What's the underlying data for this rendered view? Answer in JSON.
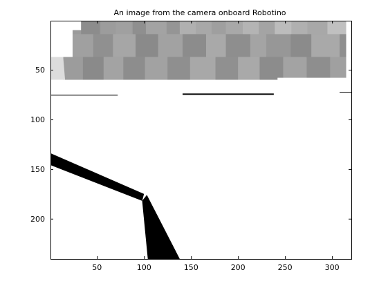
{
  "chart_data": {
    "type": "image",
    "title": "An image from the camera onboard Robotino",
    "xlabel": "",
    "ylabel": "",
    "xlim": [
      0.5,
      320.5
    ],
    "ylim": [
      0.5,
      240.5
    ],
    "y_reversed": true,
    "x_ticks": [
      50,
      100,
      150,
      200,
      250,
      300
    ],
    "y_ticks": [
      50,
      100,
      150,
      200
    ],
    "x_tick_labels": [
      "50",
      "100",
      "150",
      "200",
      "250",
      "300"
    ],
    "y_tick_labels": [
      "50",
      "100",
      "150",
      "200"
    ],
    "colormap": "gray",
    "regions": [
      {
        "name": "upper-left-gap",
        "kind": "polygon",
        "color": "#ffffff",
        "points": [
          [
            0.5,
            0.5
          ],
          [
            33,
            0.5
          ],
          [
            33,
            10
          ],
          [
            24,
            10
          ],
          [
            24,
            37
          ],
          [
            14,
            37
          ],
          [
            14,
            60
          ],
          [
            0.5,
            60
          ]
        ]
      },
      {
        "name": "upper-right-gap",
        "kind": "polygon",
        "color": "#ffffff",
        "points": [
          [
            315,
            0.5
          ],
          [
            320.5,
            0.5
          ],
          [
            320.5,
            60
          ],
          [
            315,
            60
          ]
        ]
      },
      {
        "name": "lower-right-gap",
        "kind": "polygon",
        "color": "#ffffff",
        "points": [
          [
            242,
            58
          ],
          [
            320.5,
            58
          ],
          [
            320.5,
            72
          ],
          [
            242,
            72
          ]
        ]
      },
      {
        "name": "shadow-left-edge",
        "kind": "polygon",
        "color": "#dcdcdc",
        "points": [
          [
            0.5,
            37
          ],
          [
            14,
            37
          ],
          [
            16,
            60
          ],
          [
            0.5,
            60
          ]
        ]
      },
      {
        "name": "horizon-line-left",
        "kind": "line",
        "color": "#000000",
        "width": 1,
        "points": [
          [
            0.5,
            75.5
          ],
          [
            72,
            75.5
          ]
        ]
      },
      {
        "name": "horizon-line-center",
        "kind": "line",
        "color": "#000000",
        "width": 2,
        "points": [
          [
            141,
            74.5
          ],
          [
            238,
            74.5
          ]
        ]
      },
      {
        "name": "horizon-line-right",
        "kind": "line",
        "color": "#000000",
        "width": 1,
        "points": [
          [
            308,
            72.5
          ],
          [
            320.5,
            72.5
          ]
        ]
      },
      {
        "name": "floor-line-upper",
        "kind": "polygon",
        "color": "#000000",
        "points": [
          [
            0.5,
            134
          ],
          [
            100,
            175
          ],
          [
            98,
            182
          ],
          [
            0.5,
            146
          ]
        ]
      },
      {
        "name": "floor-line-lower",
        "kind": "polygon",
        "color": "#000000",
        "points": [
          [
            98,
            182
          ],
          [
            103,
            176
          ],
          [
            138,
            240.5
          ],
          [
            104,
            240.5
          ]
        ]
      }
    ],
    "blocks": [
      {
        "x": 33,
        "y": 0.5,
        "w": 20,
        "h": 15,
        "shade": "#8c8c8c"
      },
      {
        "x": 54,
        "y": 0.5,
        "w": 16,
        "h": 14,
        "shade": "#9c9c9c"
      },
      {
        "x": 70,
        "y": 0.5,
        "w": 17,
        "h": 14,
        "shade": "#a0a0a0"
      },
      {
        "x": 88,
        "y": 0.5,
        "w": 14,
        "h": 14,
        "shade": "#8f8f8f"
      },
      {
        "x": 102,
        "y": 0.5,
        "w": 22,
        "h": 14,
        "shade": "#a3a3a3"
      },
      {
        "x": 124,
        "y": 0.5,
        "w": 14,
        "h": 14,
        "shade": "#959595"
      },
      {
        "x": 138,
        "y": 0.5,
        "w": 17,
        "h": 14,
        "shade": "#b0b0b0"
      },
      {
        "x": 155,
        "y": 0.5,
        "w": 17,
        "h": 14,
        "shade": "#a8a8a8"
      },
      {
        "x": 172,
        "y": 0.5,
        "w": 15,
        "h": 14,
        "shade": "#9f9f9f"
      },
      {
        "x": 187,
        "y": 0.5,
        "w": 18,
        "h": 14,
        "shade": "#a8a8a8"
      },
      {
        "x": 205,
        "y": 0.5,
        "w": 17,
        "h": 14,
        "shade": "#b4b4b4"
      },
      {
        "x": 222,
        "y": 0.5,
        "w": 17,
        "h": 14,
        "shade": "#a4a4a4"
      },
      {
        "x": 239,
        "y": 0.5,
        "w": 18,
        "h": 14,
        "shade": "#bcbcbc"
      },
      {
        "x": 257,
        "y": 0.5,
        "w": 17,
        "h": 14,
        "shade": "#b0b0b0"
      },
      {
        "x": 274,
        "y": 0.5,
        "w": 21,
        "h": 14,
        "shade": "#a8a8a8"
      },
      {
        "x": 295,
        "y": 0.5,
        "w": 20,
        "h": 14,
        "shade": "#c0c0c0"
      },
      {
        "x": 24,
        "y": 14,
        "w": 22,
        "h": 24,
        "shade": "#a0a0a0"
      },
      {
        "x": 46,
        "y": 14,
        "w": 21,
        "h": 24,
        "shade": "#909090"
      },
      {
        "x": 67,
        "y": 14,
        "w": 24,
        "h": 24,
        "shade": "#a6a6a6"
      },
      {
        "x": 91,
        "y": 14,
        "w": 24,
        "h": 24,
        "shade": "#8a8a8a"
      },
      {
        "x": 115,
        "y": 14,
        "w": 26,
        "h": 24,
        "shade": "#a2a2a2"
      },
      {
        "x": 141,
        "y": 14,
        "w": 25,
        "h": 24,
        "shade": "#8c8c8c"
      },
      {
        "x": 166,
        "y": 14,
        "w": 21,
        "h": 24,
        "shade": "#a9a9a9"
      },
      {
        "x": 187,
        "y": 14,
        "w": 26,
        "h": 24,
        "shade": "#8e8e8e"
      },
      {
        "x": 213,
        "y": 14,
        "w": 17,
        "h": 24,
        "shade": "#a4a4a4"
      },
      {
        "x": 230,
        "y": 14,
        "w": 26,
        "h": 24,
        "shade": "#979797"
      },
      {
        "x": 256,
        "y": 14,
        "w": 22,
        "h": 24,
        "shade": "#8b8b8b"
      },
      {
        "x": 278,
        "y": 14,
        "w": 30,
        "h": 24,
        "shade": "#a9a9a9"
      },
      {
        "x": 308,
        "y": 14,
        "w": 12,
        "h": 24,
        "shade": "#8f8f8f"
      },
      {
        "x": 14,
        "y": 37,
        "w": 21,
        "h": 23,
        "shade": "#9c9c9c"
      },
      {
        "x": 35,
        "y": 37,
        "w": 22,
        "h": 23,
        "shade": "#8a8a8a"
      },
      {
        "x": 57,
        "y": 37,
        "w": 21,
        "h": 23,
        "shade": "#a3a3a3"
      },
      {
        "x": 78,
        "y": 37,
        "w": 23,
        "h": 23,
        "shade": "#8d8d8d"
      },
      {
        "x": 101,
        "y": 37,
        "w": 24,
        "h": 23,
        "shade": "#a2a2a2"
      },
      {
        "x": 125,
        "y": 37,
        "w": 24,
        "h": 23,
        "shade": "#8f8f8f"
      },
      {
        "x": 149,
        "y": 37,
        "w": 27,
        "h": 23,
        "shade": "#a8a8a8"
      },
      {
        "x": 176,
        "y": 37,
        "w": 24,
        "h": 23,
        "shade": "#909090"
      },
      {
        "x": 200,
        "y": 37,
        "w": 23,
        "h": 23,
        "shade": "#a9a9a9"
      },
      {
        "x": 223,
        "y": 37,
        "w": 25,
        "h": 23,
        "shade": "#8c8c8c"
      },
      {
        "x": 248,
        "y": 37,
        "w": 25,
        "h": 23,
        "shade": "#a3a3a3"
      },
      {
        "x": 273,
        "y": 37,
        "w": 25,
        "h": 23,
        "shade": "#8e8e8e"
      },
      {
        "x": 298,
        "y": 37,
        "w": 22,
        "h": 23,
        "shade": "#a0a0a0"
      }
    ]
  }
}
